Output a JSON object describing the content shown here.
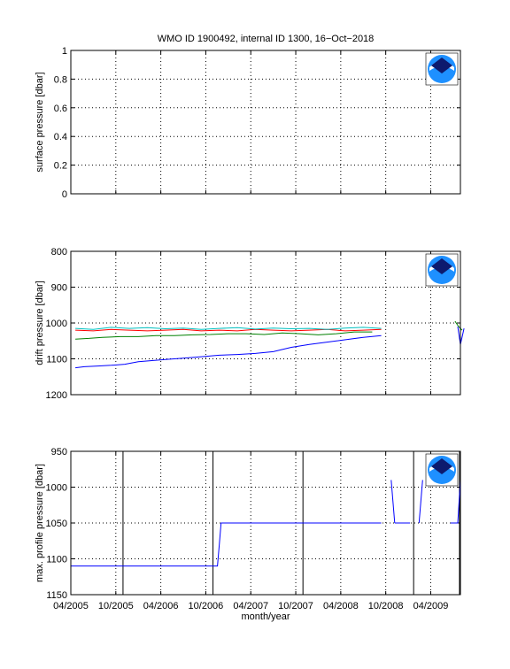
{
  "title": "WMO ID 1900492, internal ID 1300, 16−Oct−2018",
  "chart_data": [
    {
      "type": "line",
      "ylabel": "surface pressure [dbar]",
      "ylim": [
        0,
        1
      ],
      "yticks": [
        "0",
        "0.2",
        "0.4",
        "0.6",
        "0.8",
        "1"
      ],
      "grid": true,
      "series": []
    },
    {
      "type": "line",
      "ylabel": "drift pressure [dbar]",
      "ylim": [
        800,
        1200
      ],
      "y_reversed": true,
      "yticks": [
        "800",
        "900",
        "1000",
        "1100",
        "1200"
      ],
      "grid": true,
      "series": [
        {
          "color": "#0000ff",
          "x": [
            2005.3,
            2005.4,
            2005.55,
            2005.7,
            2005.85,
            2006.0,
            2006.15,
            2006.3,
            2006.5,
            2006.7,
            2006.9,
            2007.1,
            2007.3,
            2007.5,
            2007.7,
            2007.9,
            2008.05,
            2008.2,
            2008.35,
            2008.5,
            2008.7
          ],
          "y": [
            1125,
            1122,
            1120,
            1118,
            1115,
            1108,
            1105,
            1102,
            1098,
            1094,
            1090,
            1088,
            1085,
            1080,
            1068,
            1060,
            1055,
            1050,
            1045,
            1040,
            1035
          ]
        },
        {
          "color": "#008000",
          "x": [
            2005.3,
            2005.45,
            2005.6,
            2005.8,
            2006.0,
            2006.2,
            2006.4,
            2006.6,
            2006.8,
            2007.0,
            2007.2,
            2007.4,
            2007.6,
            2007.8,
            2008.0,
            2008.2,
            2008.4,
            2008.6
          ],
          "y": [
            1045,
            1043,
            1040,
            1038,
            1038,
            1035,
            1035,
            1033,
            1032,
            1030,
            1030,
            1032,
            1028,
            1030,
            1033,
            1030,
            1025,
            1025
          ]
        },
        {
          "color": "#ff0000",
          "x": [
            2005.3,
            2005.5,
            2005.7,
            2005.9,
            2006.1,
            2006.3,
            2006.5,
            2006.7,
            2006.9,
            2007.1,
            2007.3,
            2007.5,
            2007.7,
            2007.9,
            2008.1,
            2008.3,
            2008.5,
            2008.7
          ],
          "y": [
            1020,
            1022,
            1018,
            1020,
            1022,
            1020,
            1018,
            1022,
            1020,
            1022,
            1018,
            1020,
            1022,
            1020,
            1018,
            1022,
            1020,
            1018
          ]
        },
        {
          "color": "#00bfbf",
          "x": [
            2005.3,
            2005.5,
            2005.7,
            2005.9,
            2006.1,
            2006.3,
            2006.5,
            2006.7,
            2006.9,
            2007.1,
            2007.3,
            2007.5,
            2007.7,
            2007.9,
            2008.1,
            2008.3,
            2008.5,
            2008.7
          ],
          "y": [
            1015,
            1018,
            1012,
            1015,
            1013,
            1016,
            1014,
            1018,
            1015,
            1013,
            1017,
            1014,
            1016,
            1015,
            1018,
            1014,
            1012,
            1015
          ]
        },
        {
          "color": "#0000ff",
          "x": [
            2009.55,
            2009.58,
            2009.62
          ],
          "y": [
            1010,
            1060,
            1015
          ]
        },
        {
          "color": "#008000",
          "x": [
            2009.52,
            2009.56,
            2009.6
          ],
          "y": [
            995,
            1010,
            1020
          ]
        }
      ]
    },
    {
      "type": "line",
      "ylabel": "max. profile pressure [dbar]",
      "xlabel": "month/year",
      "ylim": [
        950,
        1150
      ],
      "y_reversed": true,
      "yticks": [
        "950",
        "1000",
        "1050",
        "1100",
        "1150"
      ],
      "xticks": [
        {
          "x": 2005.25,
          "label": "04/2005"
        },
        {
          "x": 2005.75,
          "label": "10/2005"
        },
        {
          "x": 2006.25,
          "label": "04/2006"
        },
        {
          "x": 2006.75,
          "label": "10/2006"
        },
        {
          "x": 2007.25,
          "label": "04/2007"
        },
        {
          "x": 2007.75,
          "label": "10/2007"
        },
        {
          "x": 2008.25,
          "label": "04/2008"
        },
        {
          "x": 2008.75,
          "label": "10/2008"
        },
        {
          "x": 2009.25,
          "label": "04/2009"
        }
      ],
      "grid": true,
      "vlines": [
        2005.83,
        2006.83,
        2007.83,
        2009.06,
        2009.57
      ],
      "series": [
        {
          "color": "#0000ff",
          "x": [
            2005.25,
            2006.88,
            2006.9,
            2006.92,
            2008.7
          ],
          "y": [
            1110,
            1110,
            1080,
            1050,
            1050
          ]
        },
        {
          "color": "#0000ff",
          "x": [
            2008.81,
            2008.85
          ],
          "y": [
            990,
            1050
          ]
        },
        {
          "color": "#0000ff",
          "x": [
            2008.85,
            2009.02
          ],
          "y": [
            1050,
            1050
          ]
        },
        {
          "color": "#0000ff",
          "x": [
            2009.12,
            2009.16
          ],
          "y": [
            1050,
            990
          ]
        },
        {
          "color": "#0000ff",
          "x": [
            2009.47,
            2009.55,
            2009.58
          ],
          "y": [
            1050,
            1050,
            990
          ]
        }
      ]
    }
  ],
  "x_range": [
    2005.25,
    2009.58
  ]
}
